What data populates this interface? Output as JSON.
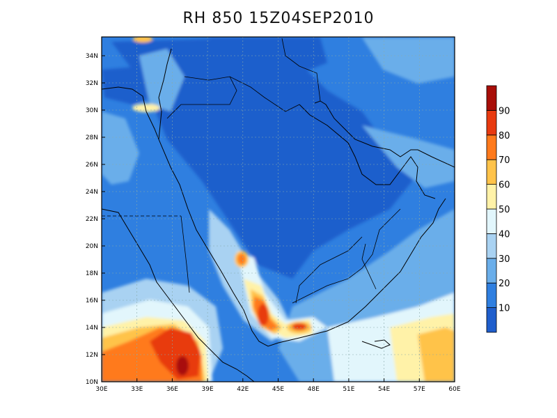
{
  "title": "RH 850 15Z04SEP2010",
  "lon_ticks": [
    "30E",
    "33E",
    "36E",
    "39E",
    "42E",
    "45E",
    "48E",
    "51E",
    "54E",
    "57E",
    "60E"
  ],
  "lat_ticks": [
    "10N",
    "12N",
    "14N",
    "16N",
    "18N",
    "20N",
    "22N",
    "24N",
    "26N",
    "28N",
    "30N",
    "32N",
    "34N"
  ],
  "colorbar": {
    "labels": [
      "10",
      "20",
      "30",
      "40",
      "50",
      "60",
      "70",
      "80",
      "90"
    ],
    "colors": [
      "#1f5ecc",
      "#2f7fe0",
      "#6aaeea",
      "#a9d2f2",
      "#e2f6fc",
      "#fff2a8",
      "#ffc34a",
      "#ff7a1c",
      "#e83a10",
      "#a80e08"
    ]
  },
  "chart_data": {
    "type": "heatmap",
    "title": "RH 850 15Z04SEP2010",
    "variable": "relative humidity",
    "level": "850",
    "valid_time": "15Z04SEP2010",
    "lon_range": [
      30,
      60
    ],
    "lat_range": [
      10,
      35
    ],
    "scale_levels": [
      10,
      20,
      30,
      40,
      50,
      60,
      70,
      80,
      90
    ],
    "grid": true
  }
}
